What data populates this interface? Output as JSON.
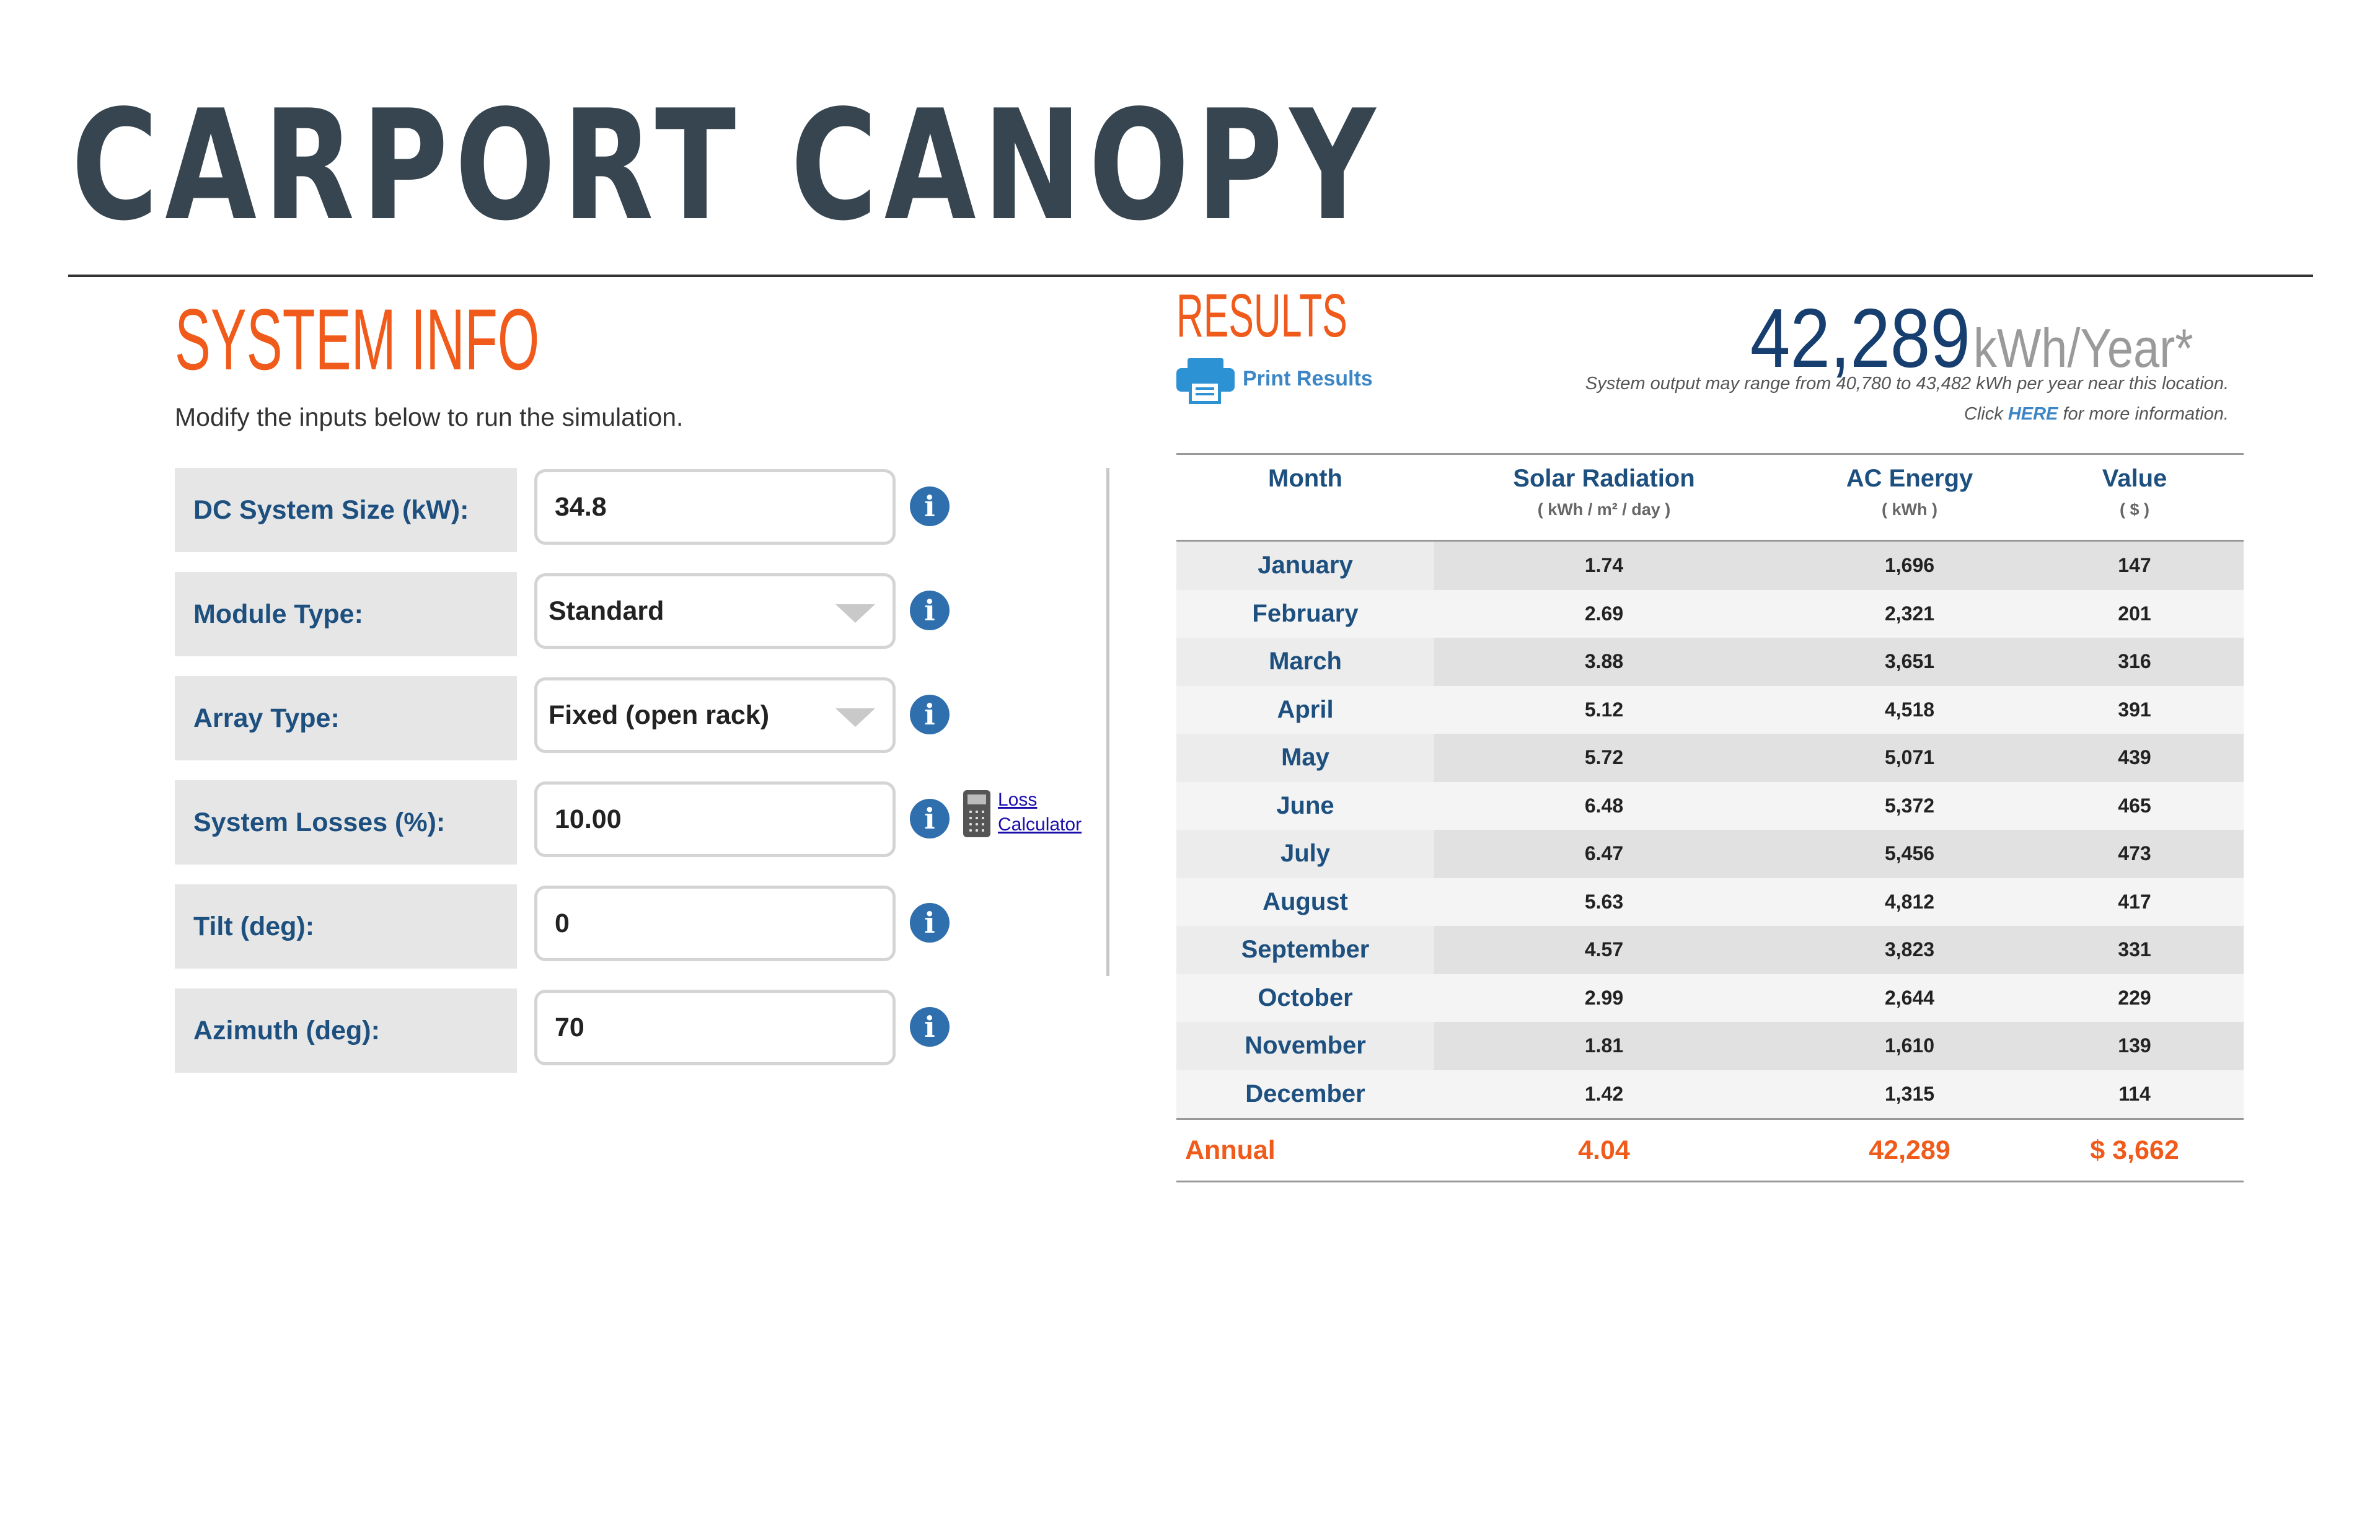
{
  "title": "CARPORT CANOPY",
  "system_info": {
    "heading": "SYSTEM INFO",
    "subtitle": "Modify the inputs below to run the simulation.",
    "fields": [
      {
        "label": "DC System Size (kW):",
        "value": "34.8"
      },
      {
        "label": "Module Type:",
        "value": "Standard"
      },
      {
        "label": "Array Type:",
        "value": "Fixed (open rack)"
      },
      {
        "label": "System Losses (%):",
        "value": "10.00"
      },
      {
        "label": "Tilt (deg):",
        "value": "0"
      },
      {
        "label": "Azimuth (deg):",
        "value": "70"
      }
    ],
    "info_icon_glyph": "i",
    "loss_calculator": {
      "line1": "Loss",
      "line2": "Calculator"
    }
  },
  "results": {
    "heading": "RESULTS",
    "print_label": "Print Results",
    "annual_output": "42,289",
    "annual_unit": "kWh/Year*",
    "range_note": "System output may range from 40,780 to 43,482 kWh per year near this location.",
    "more_info_prefix": "Click ",
    "more_info_link": "HERE",
    "more_info_suffix": " for more information.",
    "table": {
      "headers": [
        {
          "name": "Month",
          "unit": ""
        },
        {
          "name": "Solar Radiation",
          "unit": "( kWh / m² / day )"
        },
        {
          "name": "AC Energy",
          "unit": "( kWh )"
        },
        {
          "name": "Value",
          "unit": "( $ )"
        }
      ],
      "rows": [
        {
          "month": "January",
          "solar": "1.74",
          "ac": "1,696",
          "value": "147"
        },
        {
          "month": "February",
          "solar": "2.69",
          "ac": "2,321",
          "value": "201"
        },
        {
          "month": "March",
          "solar": "3.88",
          "ac": "3,651",
          "value": "316"
        },
        {
          "month": "April",
          "solar": "5.12",
          "ac": "4,518",
          "value": "391"
        },
        {
          "month": "May",
          "solar": "5.72",
          "ac": "5,071",
          "value": "439"
        },
        {
          "month": "June",
          "solar": "6.48",
          "ac": "5,372",
          "value": "465"
        },
        {
          "month": "July",
          "solar": "6.47",
          "ac": "5,456",
          "value": "473"
        },
        {
          "month": "August",
          "solar": "5.63",
          "ac": "4,812",
          "value": "417"
        },
        {
          "month": "September",
          "solar": "4.57",
          "ac": "3,823",
          "value": "331"
        },
        {
          "month": "October",
          "solar": "2.99",
          "ac": "2,644",
          "value": "229"
        },
        {
          "month": "November",
          "solar": "1.81",
          "ac": "1,610",
          "value": "139"
        },
        {
          "month": "December",
          "solar": "1.42",
          "ac": "1,315",
          "value": "114"
        }
      ],
      "annual": {
        "label": "Annual",
        "solar": "4.04",
        "ac": "42,289",
        "value": "$ 3,662"
      }
    }
  },
  "colors": {
    "accent": "#f05a1a",
    "label_blue": "#1d4f7f",
    "title_dark": "#36454f",
    "link_blue": "#3d86c6",
    "number_navy": "#163e6e"
  }
}
